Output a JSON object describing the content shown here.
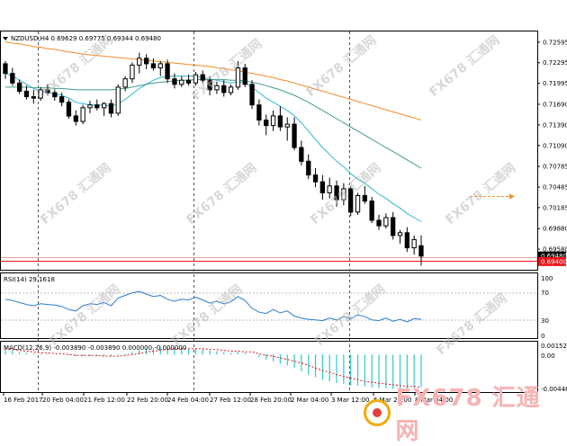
{
  "symbol_line": "NZDUSD,H4  0.69629 0.69775 0.69344 0.69480",
  "price_axis": {
    "labels": [
      "0.72595",
      "0.72295",
      "0.71995",
      "0.71690",
      "0.71390",
      "0.71090",
      "0.70785",
      "0.70485",
      "0.70185",
      "0.69880",
      "0.69580"
    ],
    "badges": [
      {
        "label": "0.69480",
        "value": 0.6948,
        "color": "#000000"
      },
      {
        "label": "0.69400",
        "value": 0.694,
        "color": "#e8141b"
      }
    ],
    "ylim": [
      0.6928,
      0.7275
    ]
  },
  "rsi_panel": {
    "label": "RSI(14) 29.1618",
    "axis_labels": [
      "100",
      "70",
      "30",
      "0"
    ]
  },
  "macd_panel": {
    "label": "MACD(12,26,9) -0.003890 -0.003890 0.000000 -0.000000",
    "axis_labels": [
      "0.001521",
      "0.00",
      "-0.004463"
    ]
  },
  "time_axis": {
    "labels": [
      "16 Feb 2017",
      "20 Feb 04:00",
      "21 Feb 12:00",
      "22 Feb 20:00",
      "24 Feb 04:00",
      "27 Feb 12:00",
      "28 Feb 20:00",
      "2 Mar 04:00",
      "3 Mar 12:00",
      "6 Mar 20:00",
      "8 Mar 04:00"
    ]
  },
  "watermark": {
    "text": "FX678 汇通网",
    "brand": "FX678 汇通网"
  },
  "colors": {
    "grid": "#cfcfcf",
    "ma_fast": "#2fb8cc",
    "ma_mid": "#3f9c8e",
    "ma_slow": "#f28c28",
    "rsi": "#2a7bd4",
    "macd_hist": "#2fc9c9",
    "macd_signal": "#e8141b",
    "separator": "#e8141b",
    "forecast": "#f28c28"
  },
  "chart_data": {
    "type": "candlestick",
    "symbol": "NZDUSD",
    "timeframe": "H4",
    "candles": [
      [
        0.7228,
        0.7232,
        0.7206,
        0.7214
      ],
      [
        0.7214,
        0.7222,
        0.7196,
        0.72
      ],
      [
        0.72,
        0.7205,
        0.7184,
        0.7188
      ],
      [
        0.7188,
        0.7196,
        0.7176,
        0.718
      ],
      [
        0.718,
        0.719,
        0.717,
        0.7178
      ],
      [
        0.7178,
        0.7194,
        0.7174,
        0.719
      ],
      [
        0.719,
        0.7198,
        0.7182,
        0.7186
      ],
      [
        0.7186,
        0.7192,
        0.7174,
        0.718
      ],
      [
        0.718,
        0.7186,
        0.7166,
        0.7172
      ],
      [
        0.7172,
        0.7176,
        0.7148,
        0.7152
      ],
      [
        0.7152,
        0.716,
        0.7138,
        0.7144
      ],
      [
        0.7144,
        0.7168,
        0.714,
        0.7164
      ],
      [
        0.7164,
        0.7174,
        0.7156,
        0.7168
      ],
      [
        0.7168,
        0.7176,
        0.716,
        0.7164
      ],
      [
        0.7164,
        0.7172,
        0.7152,
        0.717
      ],
      [
        0.717,
        0.7176,
        0.715,
        0.7156
      ],
      [
        0.7156,
        0.7198,
        0.7152,
        0.7194
      ],
      [
        0.7194,
        0.721,
        0.7188,
        0.7206
      ],
      [
        0.7206,
        0.723,
        0.72,
        0.7226
      ],
      [
        0.7226,
        0.7244,
        0.7214,
        0.7236
      ],
      [
        0.7236,
        0.7242,
        0.722,
        0.7228
      ],
      [
        0.7228,
        0.7236,
        0.7218,
        0.7222
      ],
      [
        0.7222,
        0.7232,
        0.721,
        0.7228
      ],
      [
        0.7228,
        0.7234,
        0.72,
        0.7206
      ],
      [
        0.7206,
        0.7214,
        0.7192,
        0.7198
      ],
      [
        0.7198,
        0.721,
        0.7194,
        0.7204
      ],
      [
        0.7204,
        0.7212,
        0.7196,
        0.72
      ],
      [
        0.72,
        0.7216,
        0.7196,
        0.7212
      ],
      [
        0.7212,
        0.7218,
        0.72,
        0.7204
      ],
      [
        0.7204,
        0.721,
        0.7182,
        0.719
      ],
      [
        0.719,
        0.7202,
        0.7184,
        0.7196
      ],
      [
        0.7196,
        0.7204,
        0.718,
        0.7186
      ],
      [
        0.7186,
        0.7198,
        0.7182,
        0.7194
      ],
      [
        0.7194,
        0.7232,
        0.719,
        0.7222
      ],
      [
        0.7222,
        0.7228,
        0.7194,
        0.7198
      ],
      [
        0.7198,
        0.7204,
        0.7162,
        0.7168
      ],
      [
        0.7168,
        0.7176,
        0.7138,
        0.7146
      ],
      [
        0.7146,
        0.7154,
        0.7124,
        0.7138
      ],
      [
        0.7138,
        0.716,
        0.713,
        0.7152
      ],
      [
        0.7152,
        0.7166,
        0.713,
        0.7136
      ],
      [
        0.7136,
        0.715,
        0.7116,
        0.714
      ],
      [
        0.714,
        0.715,
        0.7102,
        0.7106
      ],
      [
        0.7106,
        0.7116,
        0.708,
        0.7086
      ],
      [
        0.7086,
        0.7096,
        0.706,
        0.7066
      ],
      [
        0.7066,
        0.7076,
        0.7048,
        0.7056
      ],
      [
        0.7056,
        0.7066,
        0.703,
        0.704
      ],
      [
        0.704,
        0.7062,
        0.7032,
        0.705
      ],
      [
        0.705,
        0.7058,
        0.702,
        0.703
      ],
      [
        0.703,
        0.7054,
        0.7022,
        0.7046
      ],
      [
        0.7046,
        0.705,
        0.7006,
        0.7012
      ],
      [
        0.7012,
        0.704,
        0.7008,
        0.7036
      ],
      [
        0.7036,
        0.705,
        0.7024,
        0.7028
      ],
      [
        0.7028,
        0.7034,
        0.6996,
        0.7
      ],
      [
        0.7,
        0.7008,
        0.6986,
        0.6992
      ],
      [
        0.6992,
        0.701,
        0.6988,
        0.7004
      ],
      [
        0.7004,
        0.7012,
        0.6972,
        0.6978
      ],
      [
        0.6978,
        0.6986,
        0.6966,
        0.6982
      ],
      [
        0.6982,
        0.699,
        0.6954,
        0.696
      ],
      [
        0.696,
        0.6978,
        0.695,
        0.6972
      ],
      [
        0.6963,
        0.6978,
        0.6934,
        0.6948
      ]
    ],
    "ma_fast": [
      0.7214,
      0.721,
      0.7204,
      0.7198,
      0.7192,
      0.7188,
      0.7186,
      0.7184,
      0.7182,
      0.7178,
      0.7172,
      0.717,
      0.7168,
      0.7168,
      0.7168,
      0.7166,
      0.717,
      0.7176,
      0.7184,
      0.7192,
      0.7198,
      0.7204,
      0.7208,
      0.721,
      0.721,
      0.721,
      0.721,
      0.721,
      0.7208,
      0.7206,
      0.7204,
      0.7202,
      0.72,
      0.7202,
      0.72,
      0.7194,
      0.7186,
      0.7178,
      0.7172,
      0.7166,
      0.716,
      0.7152,
      0.7142,
      0.713,
      0.7118,
      0.7106,
      0.7096,
      0.7086,
      0.7078,
      0.7068,
      0.706,
      0.7054,
      0.7046,
      0.7038,
      0.7032,
      0.7024,
      0.7018,
      0.701,
      0.7004,
      0.6998
    ],
    "ma_mid": [
      0.7194,
      0.7194,
      0.7194,
      0.7194,
      0.7193,
      0.7193,
      0.7193,
      0.7192,
      0.7192,
      0.7191,
      0.719,
      0.719,
      0.719,
      0.719,
      0.719,
      0.719,
      0.7191,
      0.7192,
      0.7194,
      0.7196,
      0.7198,
      0.72,
      0.7201,
      0.7202,
      0.7203,
      0.7204,
      0.7204,
      0.7205,
      0.7205,
      0.7205,
      0.7205,
      0.7205,
      0.7204,
      0.7204,
      0.7203,
      0.7201,
      0.7199,
      0.7196,
      0.7193,
      0.719,
      0.7186,
      0.7182,
      0.7177,
      0.7172,
      0.7166,
      0.716,
      0.7154,
      0.7148,
      0.7142,
      0.7136,
      0.713,
      0.7124,
      0.7118,
      0.7112,
      0.7106,
      0.71,
      0.7094,
      0.7088,
      0.7082,
      0.7076
    ],
    "ma_slow": [
      0.726,
      0.7258,
      0.7257,
      0.7255,
      0.7253,
      0.7252,
      0.725,
      0.7249,
      0.7247,
      0.7245,
      0.7244,
      0.7242,
      0.7241,
      0.724,
      0.7239,
      0.7238,
      0.7237,
      0.7236,
      0.7235,
      0.7234,
      0.7233,
      0.7232,
      0.7231,
      0.723,
      0.7229,
      0.7228,
      0.7227,
      0.7226,
      0.7225,
      0.7224,
      0.7222,
      0.7221,
      0.7219,
      0.7218,
      0.7216,
      0.7214,
      0.7212,
      0.721,
      0.7208,
      0.7205,
      0.7203,
      0.72,
      0.7197,
      0.7194,
      0.7191,
      0.7188,
      0.7185,
      0.7182,
      0.7179,
      0.7176,
      0.7173,
      0.717,
      0.7167,
      0.7164,
      0.7161,
      0.7158,
      0.7155,
      0.7152,
      0.7149,
      0.7146
    ],
    "rsi": [
      60,
      58,
      55,
      52,
      50,
      53,
      52,
      51,
      49,
      44,
      42,
      50,
      53,
      52,
      55,
      50,
      62,
      66,
      70,
      72,
      68,
      64,
      66,
      60,
      57,
      60,
      59,
      63,
      59,
      54,
      57,
      53,
      56,
      64,
      58,
      46,
      40,
      38,
      44,
      39,
      42,
      34,
      31,
      29,
      28,
      27,
      31,
      28,
      33,
      30,
      36,
      33,
      28,
      27,
      31,
      26,
      29,
      25,
      30,
      29
    ],
    "macd_hist": [
      0.0006,
      0.0005,
      0.0003,
      0.0002,
      0.0001,
      0.0001,
      0.0001,
      0.0,
      0.0,
      -0.0001,
      -0.0002,
      -0.0002,
      -0.0002,
      -0.0002,
      -0.0002,
      -0.0002,
      -0.0001,
      0.0001,
      0.0003,
      0.0005,
      0.0007,
      0.0008,
      0.0009,
      0.0009,
      0.0008,
      0.0008,
      0.0007,
      0.0007,
      0.0006,
      0.0005,
      0.0004,
      0.0003,
      0.0002,
      0.0003,
      0.0002,
      0.0,
      -0.0003,
      -0.0006,
      -0.0008,
      -0.0011,
      -0.0013,
      -0.0016,
      -0.002,
      -0.0024,
      -0.0027,
      -0.003,
      -0.0032,
      -0.0034,
      -0.0035,
      -0.0037,
      -0.0037,
      -0.0038,
      -0.0039,
      -0.004,
      -0.004,
      -0.0041,
      -0.0041,
      -0.0041,
      -0.004,
      -0.0039
    ],
    "macd_signal": [
      0.0007,
      0.0006,
      0.0005,
      0.0004,
      0.0003,
      0.0002,
      0.0002,
      0.0001,
      0.0001,
      0.0,
      -0.0001,
      -0.0001,
      -0.0001,
      -0.0001,
      -0.0002,
      -0.0002,
      -0.0002,
      -0.0001,
      0.0,
      0.0001,
      0.0003,
      0.0004,
      0.0005,
      0.0006,
      0.0007,
      0.0007,
      0.0007,
      0.0007,
      0.0007,
      0.0006,
      0.0006,
      0.0005,
      0.0004,
      0.0004,
      0.0003,
      0.0003,
      0.0001,
      -0.0001,
      -0.0002,
      -0.0004,
      -0.0006,
      -0.0008,
      -0.001,
      -0.0013,
      -0.0016,
      -0.0019,
      -0.0021,
      -0.0024,
      -0.0026,
      -0.0028,
      -0.003,
      -0.0032,
      -0.0033,
      -0.0034,
      -0.0035,
      -0.0036,
      -0.0037,
      -0.0038,
      -0.0038,
      -0.0039
    ]
  }
}
